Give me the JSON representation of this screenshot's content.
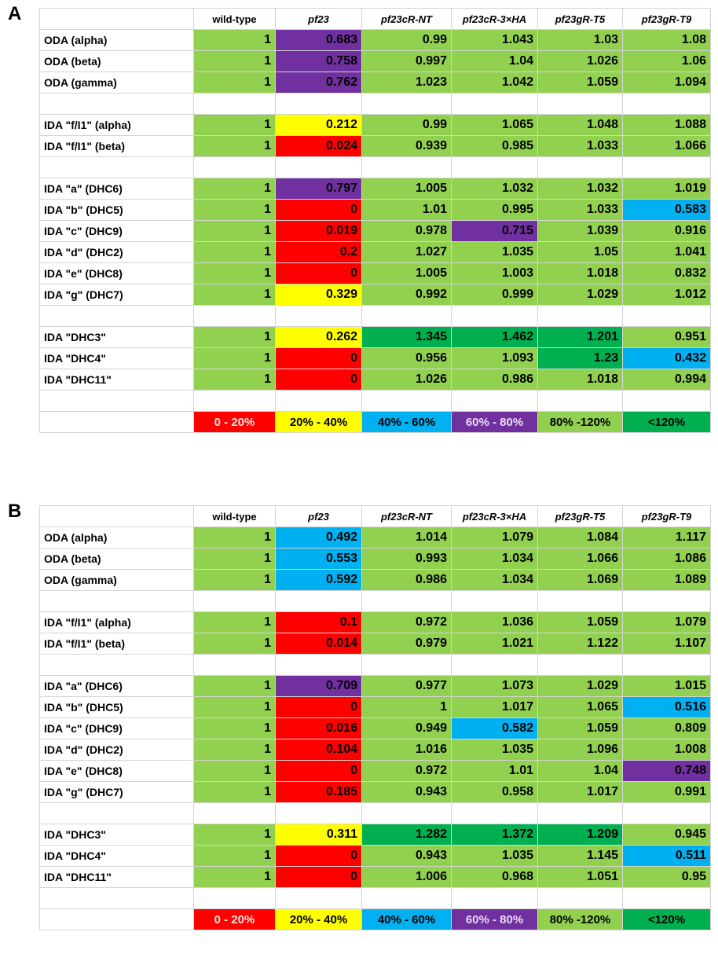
{
  "colors": {
    "green": "#92d050",
    "dark_green": "#00b050",
    "purple": "#7030a0",
    "yellow": "#ffff00",
    "red": "#ff0000",
    "blue": "#00b0f0"
  },
  "panels": [
    {
      "label": "A",
      "columns": [
        "wild-type",
        "pf23",
        "pf23cR-NT",
        "pf23cR-3×HA",
        "pf23gR-T5",
        "pf23gR-T9"
      ],
      "rows": [
        {
          "label": "ODA (alpha)",
          "values": [
            "1",
            "0.683",
            "0.99",
            "1.043",
            "1.03",
            "1.08"
          ],
          "colors": [
            "green",
            "purple",
            "green",
            "green",
            "green",
            "green"
          ]
        },
        {
          "label": "ODA (beta)",
          "values": [
            "1",
            "0.758",
            "0.997",
            "1.04",
            "1.026",
            "1.06"
          ],
          "colors": [
            "green",
            "purple",
            "green",
            "green",
            "green",
            "green"
          ]
        },
        {
          "label": "ODA (gamma)",
          "values": [
            "1",
            "0.762",
            "1.023",
            "1.042",
            "1.059",
            "1.094"
          ],
          "colors": [
            "green",
            "purple",
            "green",
            "green",
            "green",
            "green"
          ]
        },
        {
          "spacer": true
        },
        {
          "label": "IDA \"f/I1\" (alpha)",
          "values": [
            "1",
            "0.212",
            "0.99",
            "1.065",
            "1.048",
            "1.088"
          ],
          "colors": [
            "green",
            "yellow",
            "green",
            "green",
            "green",
            "green"
          ]
        },
        {
          "label": "IDA \"f/I1\" (beta)",
          "values": [
            "1",
            "0.024",
            "0.939",
            "0.985",
            "1.033",
            "1.066"
          ],
          "colors": [
            "green",
            "red",
            "green",
            "green",
            "green",
            "green"
          ]
        },
        {
          "spacer": true
        },
        {
          "label": "IDA \"a\" (DHC6)",
          "values": [
            "1",
            "0.797",
            "1.005",
            "1.032",
            "1.032",
            "1.019"
          ],
          "colors": [
            "green",
            "purple",
            "green",
            "green",
            "green",
            "green"
          ]
        },
        {
          "label": "IDA \"b\" (DHC5)",
          "values": [
            "1",
            "0",
            "1.01",
            "0.995",
            "1.033",
            "0.583"
          ],
          "colors": [
            "green",
            "red",
            "green",
            "green",
            "green",
            "blue"
          ]
        },
        {
          "label": "IDA \"c\" (DHC9)",
          "values": [
            "1",
            "0.019",
            "0.978",
            "0.715",
            "1.039",
            "0.916"
          ],
          "colors": [
            "green",
            "red",
            "green",
            "purple",
            "green",
            "green"
          ]
        },
        {
          "label": "IDA \"d\" (DHC2)",
          "values": [
            "1",
            "0.2",
            "1.027",
            "1.035",
            "1.05",
            "1.041"
          ],
          "colors": [
            "green",
            "red",
            "green",
            "green",
            "green",
            "green"
          ]
        },
        {
          "label": "IDA \"e\" (DHC8)",
          "values": [
            "1",
            "0",
            "1.005",
            "1.003",
            "1.018",
            "0.832"
          ],
          "colors": [
            "green",
            "red",
            "green",
            "green",
            "green",
            "green"
          ]
        },
        {
          "label": "IDA \"g\" (DHC7)",
          "values": [
            "1",
            "0.329",
            "0.992",
            "0.999",
            "1.029",
            "1.012"
          ],
          "colors": [
            "green",
            "yellow",
            "green",
            "green",
            "green",
            "green"
          ]
        },
        {
          "spacer": true
        },
        {
          "label": "IDA \"DHC3\"",
          "values": [
            "1",
            "0.262",
            "1.345",
            "1.462",
            "1.201",
            "0.951"
          ],
          "colors": [
            "green",
            "yellow",
            "dark_green",
            "dark_green",
            "dark_green",
            "green"
          ]
        },
        {
          "label": "IDA \"DHC4\"",
          "values": [
            "1",
            "0",
            "0.956",
            "1.093",
            "1.23",
            "0.432"
          ],
          "colors": [
            "green",
            "red",
            "green",
            "green",
            "dark_green",
            "blue"
          ]
        },
        {
          "label": "IDA \"DHC11\"",
          "values": [
            "1",
            "0",
            "1.026",
            "0.986",
            "1.018",
            "0.994"
          ],
          "colors": [
            "green",
            "red",
            "green",
            "green",
            "green",
            "green"
          ]
        },
        {
          "spacer": true
        }
      ],
      "legend": [
        {
          "text": "0 - 20%",
          "color": "red"
        },
        {
          "text": "20% - 40%",
          "color": "yellow"
        },
        {
          "text": "40% - 60%",
          "color": "blue"
        },
        {
          "text": "60% - 80%",
          "color": "purple"
        },
        {
          "text": "80% -120%",
          "color": "green"
        },
        {
          "text": "<120%",
          "color": "dark_green"
        }
      ]
    },
    {
      "label": "B",
      "columns": [
        "wild-type",
        "pf23",
        "pf23cR-NT",
        "pf23cR-3×HA",
        "pf23gR-T5",
        "pf23gR-T9"
      ],
      "rows": [
        {
          "label": "ODA (alpha)",
          "values": [
            "1",
            "0.492",
            "1.014",
            "1.079",
            "1.084",
            "1.117"
          ],
          "colors": [
            "green",
            "blue",
            "green",
            "green",
            "green",
            "green"
          ]
        },
        {
          "label": "ODA (beta)",
          "values": [
            "1",
            "0.553",
            "0.993",
            "1.034",
            "1.066",
            "1.086"
          ],
          "colors": [
            "green",
            "blue",
            "green",
            "green",
            "green",
            "green"
          ]
        },
        {
          "label": "ODA (gamma)",
          "values": [
            "1",
            "0.592",
            "0.986",
            "1.034",
            "1.069",
            "1.089"
          ],
          "colors": [
            "green",
            "blue",
            "green",
            "green",
            "green",
            "green"
          ]
        },
        {
          "spacer": true
        },
        {
          "label": "IDA \"f/I1\" (alpha)",
          "values": [
            "1",
            "0.1",
            "0.972",
            "1.036",
            "1.059",
            "1.079"
          ],
          "colors": [
            "green",
            "red",
            "green",
            "green",
            "green",
            "green"
          ]
        },
        {
          "label": "IDA \"f/I1\" (beta)",
          "values": [
            "1",
            "0.014",
            "0.979",
            "1.021",
            "1.122",
            "1.107"
          ],
          "colors": [
            "green",
            "red",
            "green",
            "green",
            "green",
            "green"
          ]
        },
        {
          "spacer": true
        },
        {
          "label": "IDA \"a\" (DHC6)",
          "values": [
            "1",
            "0.709",
            "0.977",
            "1.073",
            "1.029",
            "1.015"
          ],
          "colors": [
            "green",
            "purple",
            "green",
            "green",
            "green",
            "green"
          ]
        },
        {
          "label": "IDA \"b\" (DHC5)",
          "values": [
            "1",
            "0",
            "1",
            "1.017",
            "1.065",
            "0.516"
          ],
          "colors": [
            "green",
            "red",
            "green",
            "green",
            "green",
            "blue"
          ]
        },
        {
          "label": "IDA \"c\" (DHC9)",
          "values": [
            "1",
            "0.016",
            "0.949",
            "0.582",
            "1.059",
            "0.809"
          ],
          "colors": [
            "green",
            "red",
            "green",
            "blue",
            "green",
            "green"
          ]
        },
        {
          "label": "IDA \"d\" (DHC2)",
          "values": [
            "1",
            "0.104",
            "1.016",
            "1.035",
            "1.096",
            "1.008"
          ],
          "colors": [
            "green",
            "red",
            "green",
            "green",
            "green",
            "green"
          ]
        },
        {
          "label": "IDA \"e\" (DHC8)",
          "values": [
            "1",
            "0",
            "0.972",
            "1.01",
            "1.04",
            "0.748"
          ],
          "colors": [
            "green",
            "red",
            "green",
            "green",
            "green",
            "purple"
          ]
        },
        {
          "label": "IDA \"g\" (DHC7)",
          "values": [
            "1",
            "0.185",
            "0.943",
            "0.958",
            "1.017",
            "0.991"
          ],
          "colors": [
            "green",
            "red",
            "green",
            "green",
            "green",
            "green"
          ]
        },
        {
          "spacer": true
        },
        {
          "label": "IDA \"DHC3\"",
          "values": [
            "1",
            "0.311",
            "1.282",
            "1.372",
            "1.209",
            "0.945"
          ],
          "colors": [
            "green",
            "yellow",
            "dark_green",
            "dark_green",
            "dark_green",
            "green"
          ]
        },
        {
          "label": "IDA \"DHC4\"",
          "values": [
            "1",
            "0",
            "0.943",
            "1.035",
            "1.145",
            "0.511"
          ],
          "colors": [
            "green",
            "red",
            "green",
            "green",
            "green",
            "blue"
          ]
        },
        {
          "label": "IDA \"DHC11\"",
          "values": [
            "1",
            "0",
            "1.006",
            "0.968",
            "1.051",
            "0.95"
          ],
          "colors": [
            "green",
            "red",
            "green",
            "green",
            "green",
            "green"
          ]
        },
        {
          "spacer": true
        }
      ],
      "legend": [
        {
          "text": "0 - 20%",
          "color": "red"
        },
        {
          "text": "20% - 40%",
          "color": "yellow"
        },
        {
          "text": "40% - 60%",
          "color": "blue"
        },
        {
          "text": "60% - 80%",
          "color": "purple"
        },
        {
          "text": "80% -120%",
          "color": "green"
        },
        {
          "text": "<120%",
          "color": "dark_green"
        }
      ]
    }
  ]
}
